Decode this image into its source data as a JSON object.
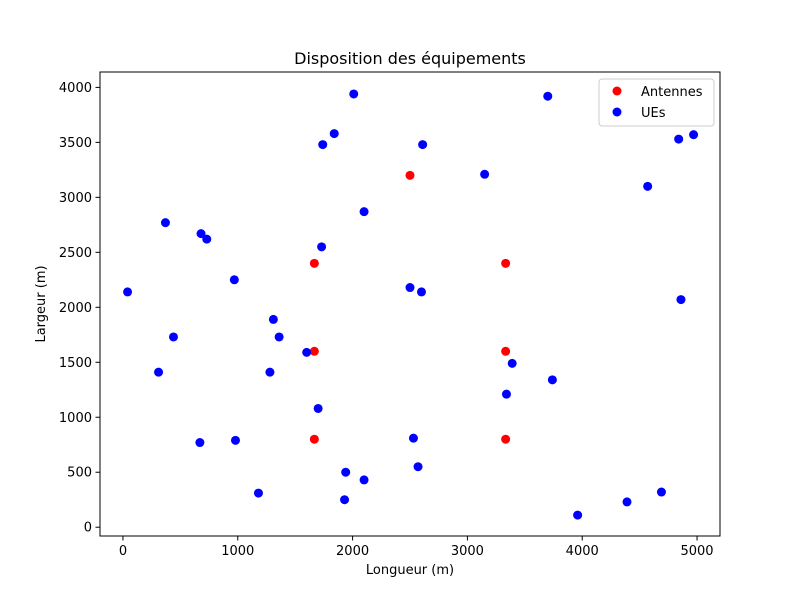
{
  "chart_data": {
    "type": "scatter",
    "title": "Disposition des équipements",
    "xlabel": "Longueur (m)",
    "ylabel": "Largeur (m)",
    "xlim": [
      -200,
      5200
    ],
    "ylim": [
      -80,
      4140
    ],
    "xticks": [
      0,
      1000,
      2000,
      3000,
      4000,
      5000
    ],
    "yticks": [
      0,
      500,
      1000,
      1500,
      2000,
      2500,
      3000,
      3500,
      4000
    ],
    "grid": false,
    "legend_position": "top-right",
    "series": [
      {
        "name": "Antennes",
        "color": "#ff0000",
        "points": [
          [
            2500,
            3200
          ],
          [
            1667,
            2400
          ],
          [
            3333,
            2400
          ],
          [
            1667,
            1600
          ],
          [
            3333,
            1600
          ],
          [
            1667,
            800
          ],
          [
            3333,
            800
          ]
        ]
      },
      {
        "name": "UEs",
        "color": "#0000ff",
        "points": [
          [
            2010,
            3940
          ],
          [
            3700,
            3920
          ],
          [
            1840,
            3580
          ],
          [
            1740,
            3480
          ],
          [
            2610,
            3480
          ],
          [
            4840,
            3530
          ],
          [
            4970,
            3570
          ],
          [
            3150,
            3210
          ],
          [
            4570,
            3100
          ],
          [
            2100,
            2870
          ],
          [
            370,
            2770
          ],
          [
            680,
            2670
          ],
          [
            730,
            2620
          ],
          [
            1730,
            2550
          ],
          [
            970,
            2250
          ],
          [
            40,
            2140
          ],
          [
            2500,
            2180
          ],
          [
            2600,
            2140
          ],
          [
            4860,
            2070
          ],
          [
            1310,
            1890
          ],
          [
            440,
            1730
          ],
          [
            1360,
            1730
          ],
          [
            1600,
            1590
          ],
          [
            3390,
            1490
          ],
          [
            310,
            1410
          ],
          [
            1280,
            1410
          ],
          [
            3740,
            1340
          ],
          [
            3340,
            1210
          ],
          [
            1700,
            1080
          ],
          [
            670,
            770
          ],
          [
            980,
            790
          ],
          [
            2530,
            810
          ],
          [
            1940,
            500
          ],
          [
            2570,
            550
          ],
          [
            2100,
            430
          ],
          [
            1180,
            310
          ],
          [
            1930,
            250
          ],
          [
            4690,
            320
          ],
          [
            4390,
            230
          ],
          [
            3960,
            110
          ]
        ]
      }
    ]
  }
}
